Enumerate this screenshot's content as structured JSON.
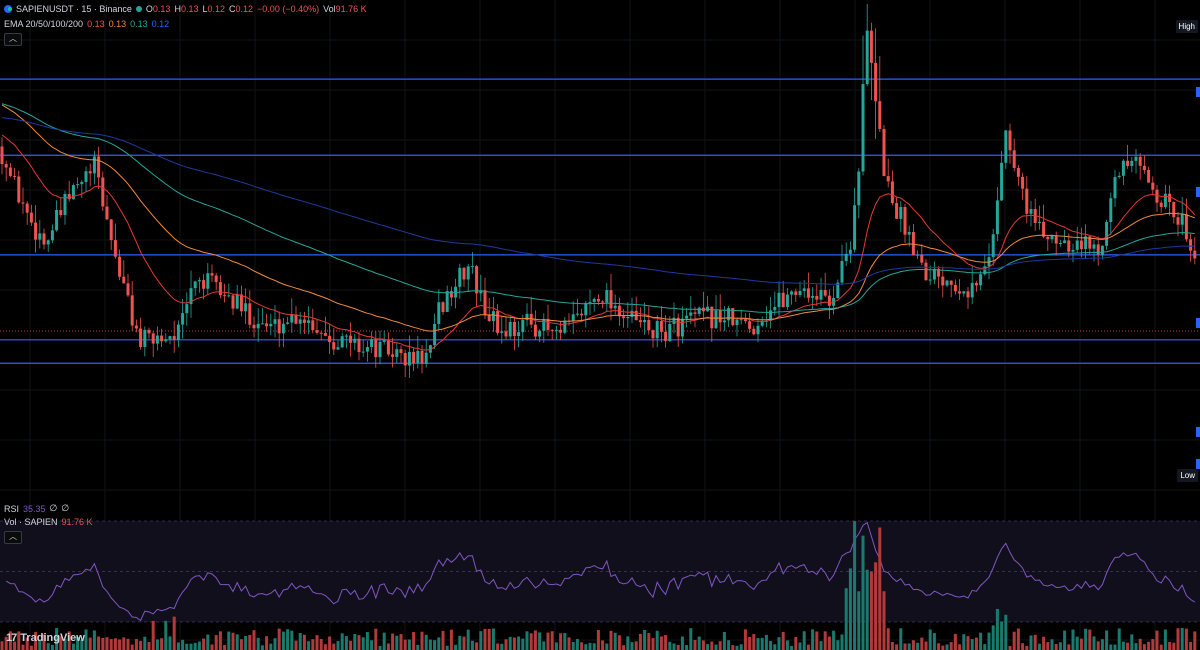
{
  "legend": {
    "symbol": "SAPIENUSDT · 15 · Binance",
    "o_label": "O",
    "o_value": "0.13",
    "h_label": "H",
    "h_value": "0.13",
    "l_label": "L",
    "l_value": "0.12",
    "c_label": "C",
    "c_value": "0.12",
    "change": "−0.00 (−0.40%)",
    "vol_label": "Vol",
    "vol_value": "91.76 K",
    "ema_label": "EMA 20/50/100/200",
    "ema_values": [
      "0.13",
      "0.13",
      "0.13",
      "0.12"
    ]
  },
  "rsi_legend": {
    "label": "RSI",
    "value": "35.35",
    "extra1": "∅",
    "extra2": "∅"
  },
  "vol_legend": {
    "label": "Vol · SAPIEN",
    "value": "91.76 K"
  },
  "axis_tags": {
    "high": "High",
    "low": "Low"
  },
  "watermark": {
    "logo": "17",
    "text": "TradingView"
  },
  "colors": {
    "up": "#26a69a",
    "down": "#ef5350",
    "ema20": "#e53935",
    "ema50": "#ef8a3c",
    "ema100": "#26a69a",
    "ema200": "#1e3a9e",
    "level": "#2962ff",
    "rsi": "#7e57c2"
  },
  "chart_data": {
    "type": "candlestick",
    "symbol": "SAPIENUSDT",
    "interval": "15",
    "exchange": "Binance",
    "price_range": [
      0.1175,
      0.1345
    ],
    "horizontal_levels": [
      0.1318,
      0.1292,
      0.1258,
      0.1229,
      0.1221
    ],
    "candle_keypoints": [
      [
        0,
        0.1295
      ],
      [
        10,
        0.1285
      ],
      [
        30,
        0.127
      ],
      [
        45,
        0.1262
      ],
      [
        70,
        0.1278
      ],
      [
        95,
        0.1288
      ],
      [
        110,
        0.1265
      ],
      [
        125,
        0.1245
      ],
      [
        140,
        0.1228
      ],
      [
        160,
        0.123
      ],
      [
        180,
        0.1232
      ],
      [
        195,
        0.125
      ],
      [
        215,
        0.1247
      ],
      [
        240,
        0.124
      ],
      [
        270,
        0.1233
      ],
      [
        300,
        0.1238
      ],
      [
        330,
        0.123
      ],
      [
        360,
        0.1227
      ],
      [
        390,
        0.1225
      ],
      [
        410,
        0.1222
      ],
      [
        430,
        0.1224
      ],
      [
        440,
        0.124
      ],
      [
        460,
        0.125
      ],
      [
        470,
        0.1255
      ],
      [
        480,
        0.1243
      ],
      [
        500,
        0.1232
      ],
      [
        530,
        0.1235
      ],
      [
        560,
        0.123
      ],
      [
        580,
        0.1238
      ],
      [
        600,
        0.1246
      ],
      [
        630,
        0.1236
      ],
      [
        660,
        0.1231
      ],
      [
        690,
        0.1236
      ],
      [
        720,
        0.1237
      ],
      [
        750,
        0.1233
      ],
      [
        775,
        0.1241
      ],
      [
        800,
        0.1247
      ],
      [
        830,
        0.1242
      ],
      [
        850,
        0.1262
      ],
      [
        858,
        0.1285
      ],
      [
        868,
        0.1332
      ],
      [
        878,
        0.1298
      ],
      [
        890,
        0.1278
      ],
      [
        905,
        0.1268
      ],
      [
        925,
        0.1253
      ],
      [
        950,
        0.125
      ],
      [
        975,
        0.1246
      ],
      [
        990,
        0.1258
      ],
      [
        1005,
        0.13
      ],
      [
        1020,
        0.1281
      ],
      [
        1040,
        0.1265
      ],
      [
        1070,
        0.1263
      ],
      [
        1100,
        0.126
      ],
      [
        1110,
        0.128
      ],
      [
        1130,
        0.129
      ],
      [
        1150,
        0.1283
      ],
      [
        1170,
        0.1273
      ],
      [
        1185,
        0.1268
      ],
      [
        1195,
        0.1258
      ]
    ],
    "rsi": {
      "last": 35.35,
      "range": [
        0,
        100
      ]
    },
    "volume": {
      "last": "91.76 K",
      "unit": "SAPIEN"
    }
  }
}
